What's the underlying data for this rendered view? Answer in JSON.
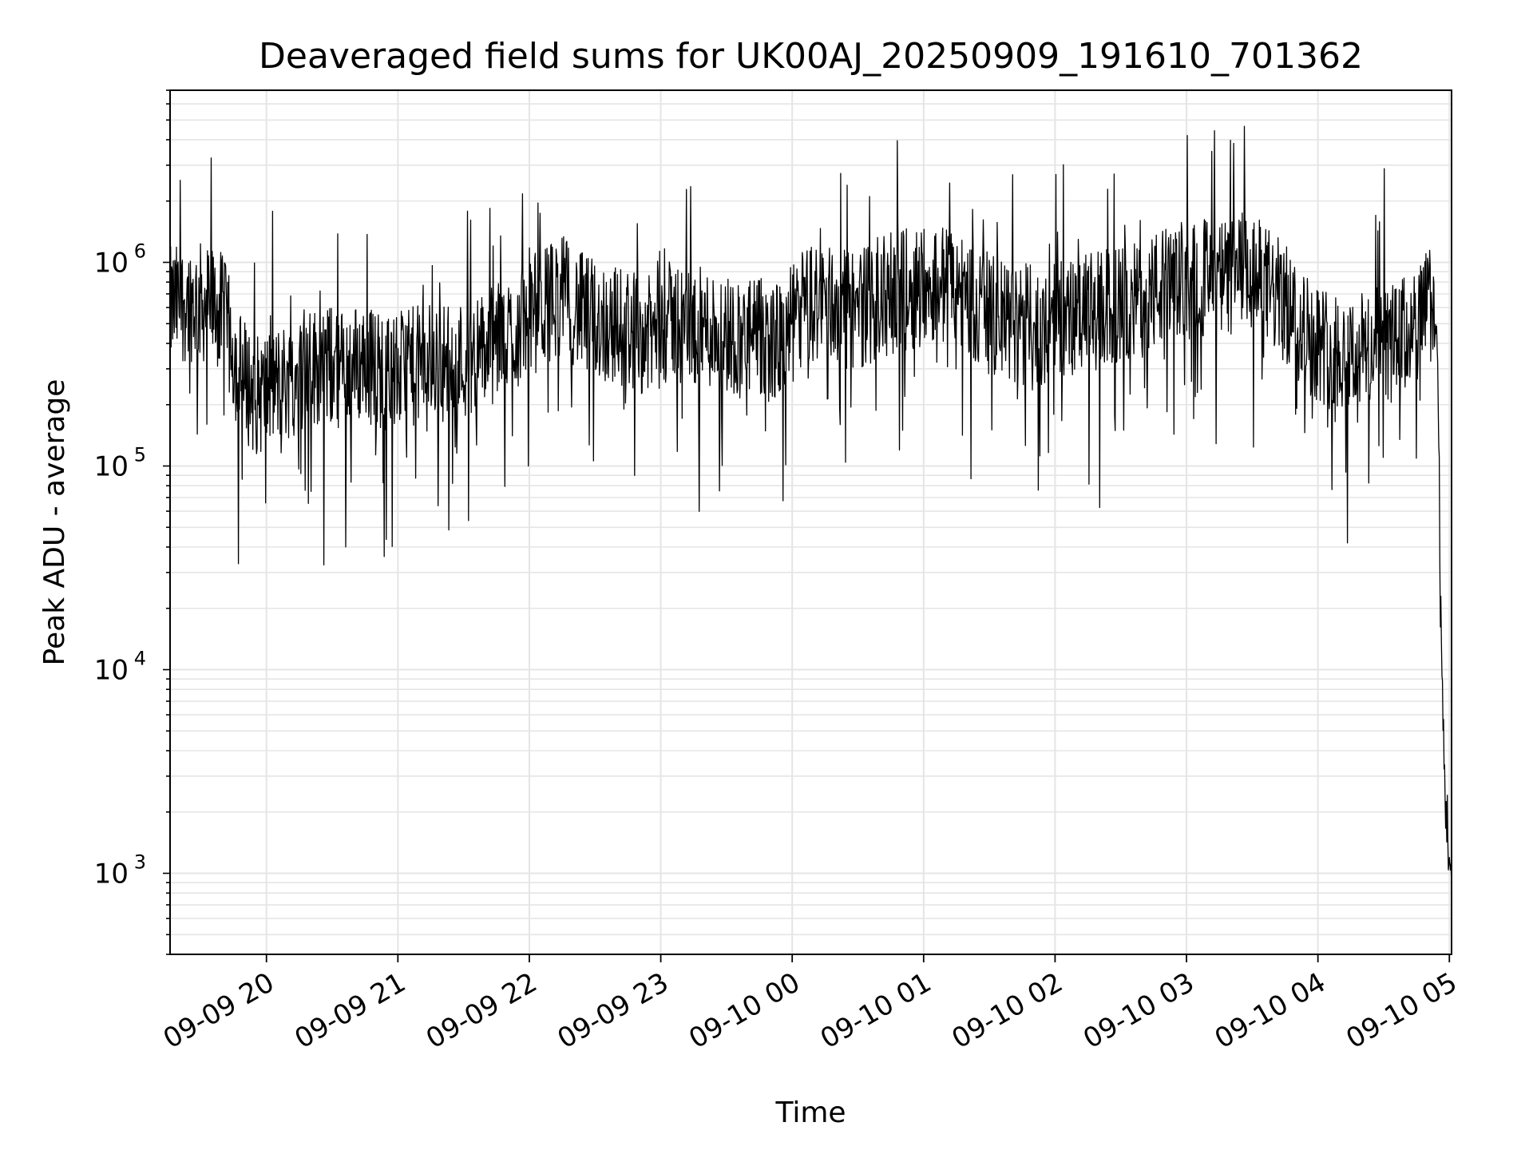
{
  "chart_data": {
    "type": "line",
    "title": "Deaveraged field sums for UK00AJ_20250909_191610_701362",
    "xlabel": "Time",
    "ylabel": "Peak ADU - average",
    "y_scale": "log",
    "ylim": [
      400,
      7000000
    ],
    "xlim": [
      "2025-09-09 19:16",
      "2025-09-10 05:01"
    ],
    "x_ticks": [
      "09-09 20",
      "09-09 21",
      "09-09 22",
      "09-09 23",
      "09-10 00",
      "09-10 01",
      "09-10 02",
      "09-10 03",
      "09-10 04",
      "09-10 05"
    ],
    "y_ticks": [
      {
        "base": "10",
        "exp": "3"
      },
      {
        "base": "10",
        "exp": "4"
      },
      {
        "base": "10",
        "exp": "5"
      },
      {
        "base": "10",
        "exp": "6"
      }
    ],
    "grid": true,
    "line_color": "#000000",
    "grid_color": "#e5e5e5",
    "x": [
      "2025-09-09 19:16",
      "2025-09-09 19:24",
      "2025-09-09 19:34",
      "2025-09-09 19:40",
      "2025-09-09 19:47",
      "2025-09-09 19:55",
      "2025-09-09 20:05",
      "2025-09-09 20:15",
      "2025-09-09 20:25",
      "2025-09-09 20:35",
      "2025-09-09 20:45",
      "2025-09-09 20:55",
      "2025-09-09 21:05",
      "2025-09-09 21:15",
      "2025-09-09 21:25",
      "2025-09-09 21:35",
      "2025-09-09 21:45",
      "2025-09-09 21:55",
      "2025-09-09 22:05",
      "2025-09-09 22:15",
      "2025-09-09 22:25",
      "2025-09-09 22:35",
      "2025-09-09 22:45",
      "2025-09-09 22:55",
      "2025-09-09 23:05",
      "2025-09-09 23:15",
      "2025-09-09 23:25",
      "2025-09-09 23:35",
      "2025-09-09 23:45",
      "2025-09-09 23:55",
      "2025-09-10 00:05",
      "2025-09-10 00:15",
      "2025-09-10 00:25",
      "2025-09-10 00:35",
      "2025-09-10 00:45",
      "2025-09-10 00:55",
      "2025-09-10 01:05",
      "2025-09-10 01:15",
      "2025-09-10 01:25",
      "2025-09-10 01:35",
      "2025-09-10 01:45",
      "2025-09-10 01:55",
      "2025-09-10 02:05",
      "2025-09-10 02:15",
      "2025-09-10 02:25",
      "2025-09-10 02:35",
      "2025-09-10 02:45",
      "2025-09-10 02:55",
      "2025-09-10 03:05",
      "2025-09-10 03:15",
      "2025-09-10 03:25",
      "2025-09-10 03:35",
      "2025-09-10 03:45",
      "2025-09-10 03:55",
      "2025-09-10 04:05",
      "2025-09-10 04:15",
      "2025-09-10 04:25",
      "2025-09-10 04:35",
      "2025-09-10 04:45",
      "2025-09-10 04:52",
      "2025-09-10 04:54",
      "2025-09-10 04:55",
      "2025-09-10 04:56",
      "2025-09-10 04:57",
      "2025-09-10 04:58",
      "2025-09-10 04:59",
      "2025-09-10 05:00",
      "2025-09-10 05:01"
    ],
    "y": [
      600000,
      650000,
      620000,
      560000,
      300000,
      220000,
      250000,
      280000,
      320000,
      300000,
      330000,
      280000,
      300000,
      330000,
      320000,
      350000,
      400000,
      470000,
      600000,
      700000,
      550000,
      500000,
      480000,
      430000,
      520000,
      480000,
      470000,
      430000,
      420000,
      400000,
      600000,
      650000,
      580000,
      620000,
      700000,
      750000,
      800000,
      750000,
      600000,
      520000,
      480000,
      500000,
      520000,
      560000,
      600000,
      620000,
      720000,
      780000,
      850000,
      800000,
      900000,
      800000,
      620000,
      450000,
      380000,
      360000,
      380000,
      400000,
      480000,
      650000,
      500000,
      200000,
      18000,
      6000,
      2500,
      1800,
      1200,
      700
    ]
  }
}
